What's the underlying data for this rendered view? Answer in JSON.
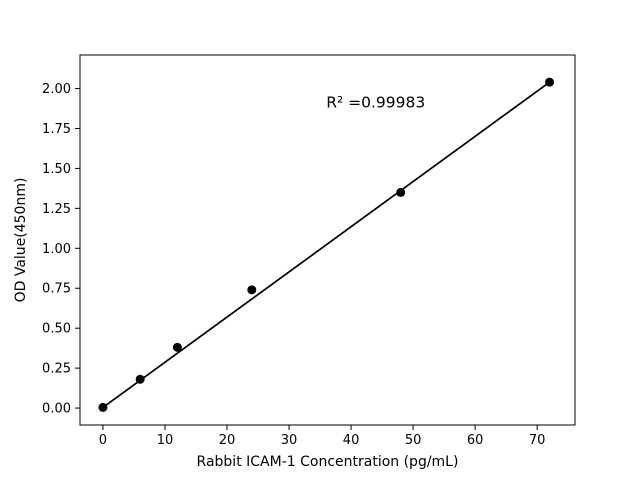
{
  "figure": {
    "background": "#ffffff"
  },
  "chart_data": {
    "type": "scatter",
    "x": [
      0,
      6,
      12,
      24,
      48,
      72
    ],
    "y": [
      0.004,
      0.18,
      0.38,
      0.74,
      1.35,
      2.04
    ],
    "fit_line": {
      "from_point_index": 0,
      "to_point_index": 5,
      "color": "#000000",
      "width": 1.7
    },
    "annotation": {
      "text": "R² =0.99983",
      "x": 36,
      "y": 1.88
    },
    "title": "",
    "xlabel": "Rabbit ICAM-1 Concentration (pg/mL)",
    "ylabel": "OD Value(450nm)",
    "xlim": [
      -3.7,
      76.1
    ],
    "ylim": [
      -0.106,
      2.21
    ],
    "xticks": [
      0,
      10,
      20,
      30,
      40,
      50,
      60,
      70
    ],
    "yticks": [
      0.0,
      0.25,
      0.5,
      0.75,
      1.0,
      1.25,
      1.5,
      1.75,
      2.0
    ],
    "ytick_decimals": 2,
    "grid": false,
    "legend": "none",
    "marker_color": "#000000",
    "marker_radius": 4.5,
    "axis_color": "#000000"
  }
}
